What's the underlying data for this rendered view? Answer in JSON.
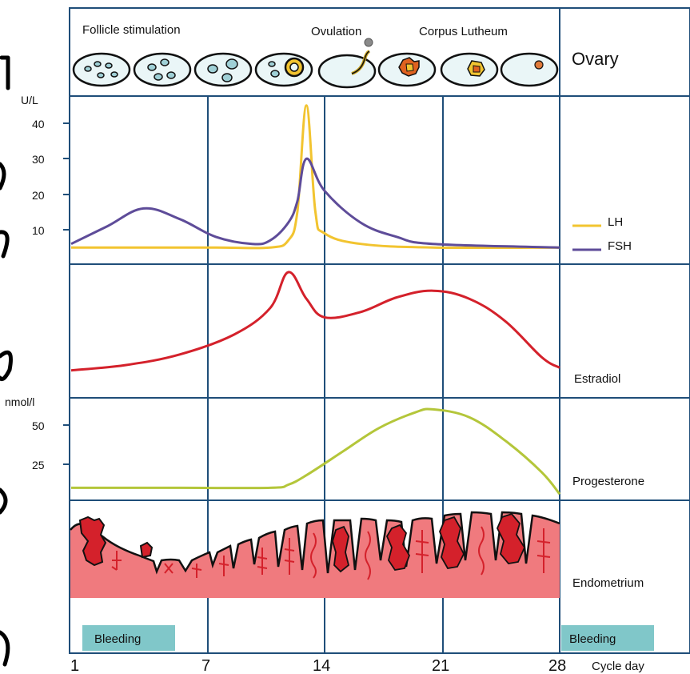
{
  "ovary": {
    "phases": {
      "follicle": "Follicle stimulation",
      "ovulation": "Ovulation",
      "corpus": "Corpus Lutheum"
    },
    "label": "Ovary"
  },
  "hormones_panel": {
    "unit": "U/L",
    "ticks": [
      "40",
      "30",
      "20",
      "10"
    ],
    "legend": [
      {
        "name": "LH",
        "color": "#f2c430"
      },
      {
        "name": "FSH",
        "color": "#5e4c99"
      }
    ]
  },
  "estradiol_panel": {
    "label": "Estradiol",
    "color": "#d4212b"
  },
  "progesterone_panel": {
    "unit": "nmol/l",
    "ticks": [
      "50",
      "25"
    ],
    "label": "Progesterone",
    "color": "#b4c63a"
  },
  "endometrium_panel": {
    "label": "Endometrium",
    "color": "#f07a7e"
  },
  "bleeding": {
    "label": "Bleeding",
    "color": "#80c7c9"
  },
  "x_axis": {
    "ticks": [
      "1",
      "7",
      "14",
      "21",
      "28"
    ],
    "label": "Cycle day"
  },
  "chart_data": {
    "type": "line",
    "xlabel": "Cycle day",
    "x_ticks": [
      1,
      7,
      14,
      21,
      28
    ],
    "series": [
      {
        "name": "LH",
        "unit": "U/L",
        "x": [
          1,
          5,
          9,
          12,
          13,
          13.5,
          14,
          14.5,
          15,
          17,
          21,
          28
        ],
        "y": [
          5,
          5,
          5,
          5,
          7,
          15,
          45,
          15,
          9,
          6,
          5,
          5
        ]
      },
      {
        "name": "FSH",
        "unit": "U/L",
        "x": [
          1,
          3,
          5,
          7,
          9,
          11,
          12,
          13,
          13.5,
          14,
          15,
          17,
          19,
          21,
          28
        ],
        "y": [
          6,
          11,
          16,
          13,
          8,
          6,
          7,
          12,
          18,
          30,
          21,
          12,
          8,
          6,
          5
        ]
      },
      {
        "name": "Estradiol",
        "x": [
          1,
          4,
          7,
          10,
          12,
          13,
          14,
          15,
          17,
          19,
          21,
          23,
          25,
          27,
          28
        ],
        "y": [
          8,
          12,
          20,
          35,
          55,
          82,
          62,
          48,
          52,
          63,
          68,
          62,
          45,
          18,
          10
        ]
      },
      {
        "name": "Progesterone",
        "unit": "nmol/l",
        "x": [
          1,
          7,
          12,
          13,
          14,
          16,
          18,
          20,
          21,
          23,
          25,
          27,
          28
        ],
        "y": [
          10,
          10,
          10,
          12,
          18,
          33,
          48,
          58,
          60,
          55,
          40,
          20,
          6
        ]
      }
    ],
    "ylim_hormones": [
      0,
      45
    ],
    "ylim_progesterone": [
      0,
      60
    ],
    "bleeding_days": [
      [
        1,
        5
      ],
      [
        28,
        28
      ]
    ]
  }
}
